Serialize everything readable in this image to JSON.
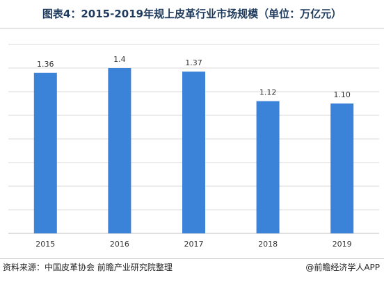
{
  "title": "图表4：2015-2019年规上皮革行业市场规模（单位：万亿元）",
  "source": "资料来源：中国皮革协会  前瞻产业研究院整理",
  "credit": "@前瞻经济学人APP",
  "colors": {
    "bar": "#3b82d9",
    "grid": "#d9d9d9",
    "axis": "#bfbfbf",
    "title": "#1e3a5c"
  },
  "chart_data": {
    "type": "bar",
    "categories": [
      "2015",
      "2016",
      "2017",
      "2018",
      "2019"
    ],
    "values": [
      1.36,
      1.4,
      1.37,
      1.12,
      1.1
    ],
    "value_labels": [
      "1.36",
      "1.4",
      "1.37",
      "1.12",
      "1.10"
    ],
    "ylim": [
      0,
      1.6
    ],
    "grid": true
  }
}
